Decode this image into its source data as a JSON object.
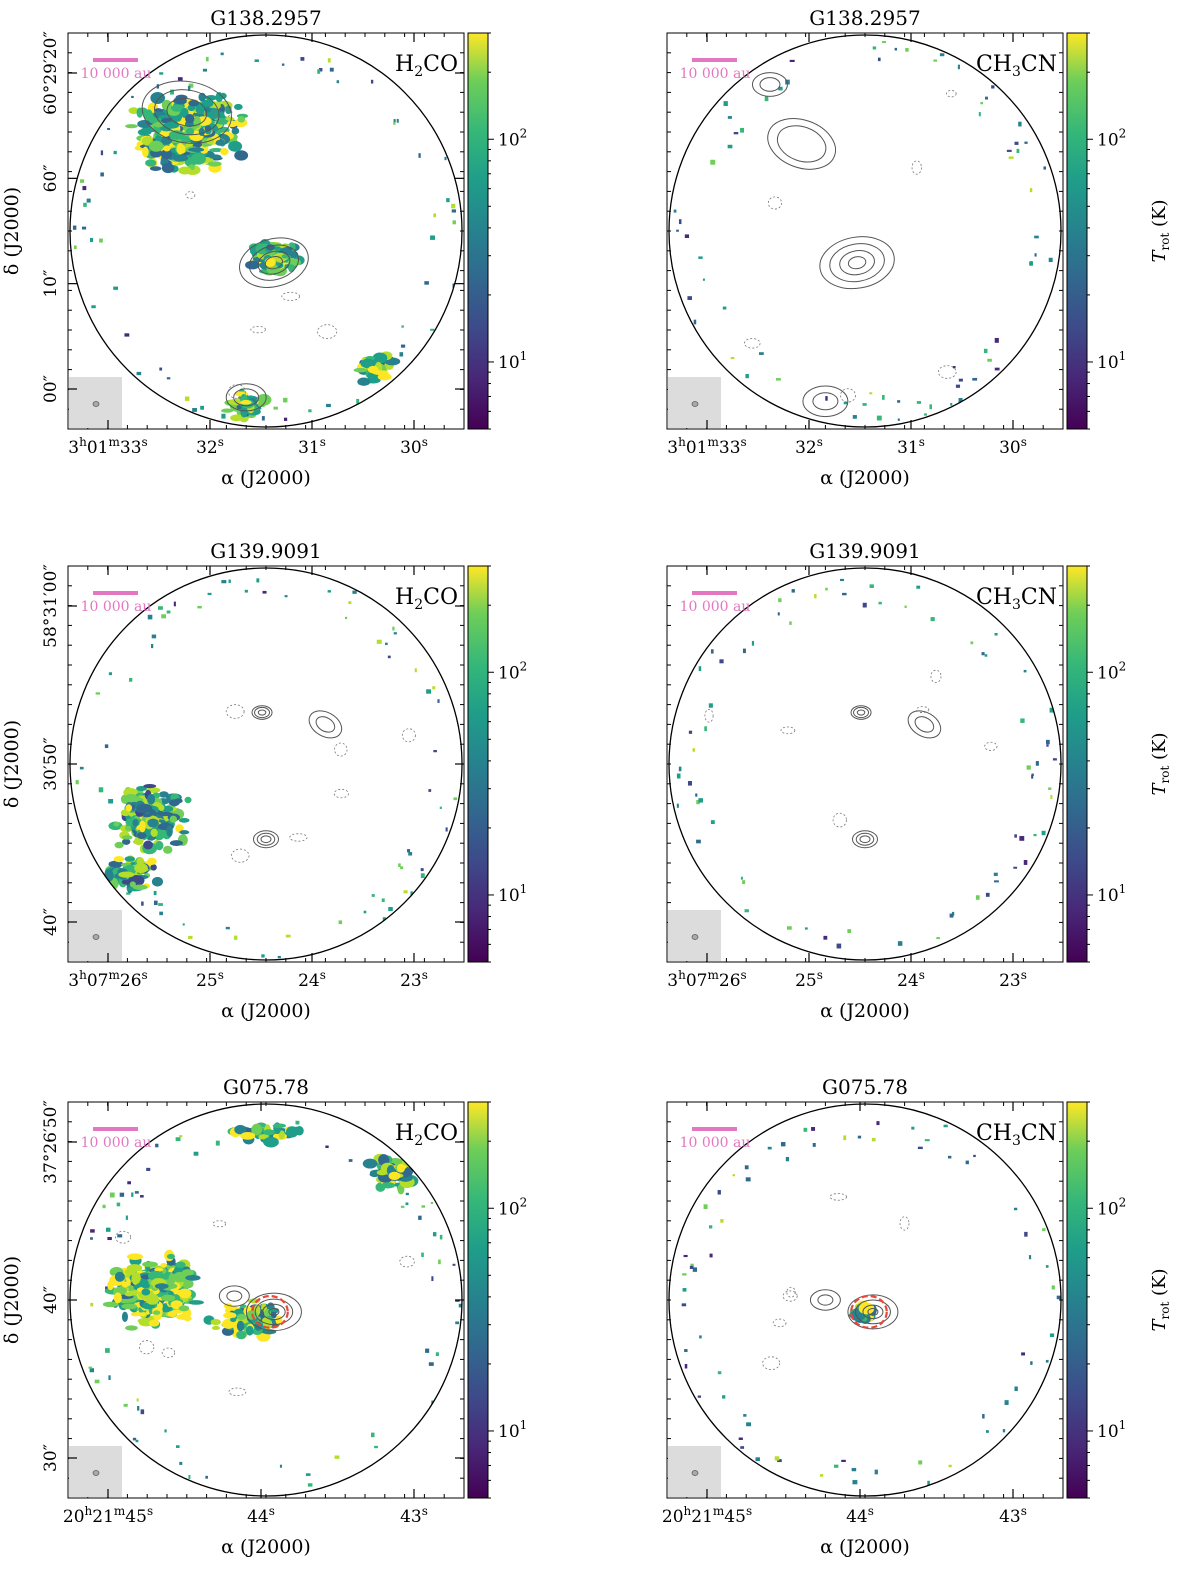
{
  "figure": {
    "x_axis_label": "α (J2000)",
    "y_axis_label": "δ (J2000)",
    "colorbar_label": "T",
    "colorbar_label_sub": "rot",
    "colorbar_label_unit": "(K)",
    "colorbar_ticks": [
      10,
      100
    ],
    "colorbar_range": [
      5,
      300
    ],
    "scalebar_label": "10 000 au",
    "colors": {
      "scalebar": "#e377c2",
      "beam_box": "#dcdcdc",
      "ellipse_outline": "#e8483a"
    }
  },
  "chart_data": [
    {
      "type": "heatmap",
      "panel": "top-left",
      "title": "G138.2957",
      "tracer": "H2CO",
      "tracer_main": "H",
      "tracer_sub": "2",
      "tracer_rest": "CO",
      "x_ticks": [
        {
          "h": "3",
          "m": "01",
          "s": "33"
        },
        {
          "s": "32"
        },
        {
          "s": "31"
        },
        {
          "s": "30"
        }
      ],
      "y_ticks": [
        {
          "label": "60°29′20″"
        },
        {
          "label": "60″"
        },
        {
          "label": "10″"
        },
        {
          "label": "00″"
        }
      ]
    },
    {
      "type": "heatmap",
      "panel": "top-right",
      "title": "G138.2957",
      "tracer": "CH3CN",
      "tracer_main": "CH",
      "tracer_sub": "3",
      "tracer_rest": "CN",
      "x_ticks": [
        {
          "h": "3",
          "m": "01",
          "s": "33"
        },
        {
          "s": "32"
        },
        {
          "s": "31"
        },
        {
          "s": "30"
        }
      ]
    },
    {
      "type": "heatmap",
      "panel": "middle-left",
      "title": "G139.9091",
      "tracer": "H2CO",
      "tracer_main": "H",
      "tracer_sub": "2",
      "tracer_rest": "CO",
      "x_ticks": [
        {
          "h": "3",
          "m": "07",
          "s": "26"
        },
        {
          "s": "25"
        },
        {
          "s": "24"
        },
        {
          "s": "23"
        }
      ],
      "y_ticks": [
        {
          "label": "58°31′00″"
        },
        {
          "label": "30′50″"
        },
        {
          "label": "40″"
        }
      ]
    },
    {
      "type": "heatmap",
      "panel": "middle-right",
      "title": "G139.9091",
      "tracer": "CH3CN",
      "tracer_main": "CH",
      "tracer_sub": "3",
      "tracer_rest": "CN",
      "x_ticks": [
        {
          "h": "3",
          "m": "07",
          "s": "26"
        },
        {
          "s": "25"
        },
        {
          "s": "24"
        },
        {
          "s": "23"
        }
      ]
    },
    {
      "type": "heatmap",
      "panel": "bottom-left",
      "title": "G075.78",
      "tracer": "H2CO",
      "tracer_main": "H",
      "tracer_sub": "2",
      "tracer_rest": "CO",
      "x_ticks": [
        {
          "h": "20",
          "m": "21",
          "s": "45"
        },
        {
          "s": "44"
        },
        {
          "s": "43"
        }
      ],
      "y_ticks": [
        {
          "label": "37°26′50″"
        },
        {
          "label": "40″"
        },
        {
          "label": "30″"
        }
      ]
    },
    {
      "type": "heatmap",
      "panel": "bottom-right",
      "title": "G075.78",
      "tracer": "CH3CN",
      "tracer_main": "CH",
      "tracer_sub": "3",
      "tracer_rest": "CN",
      "x_ticks": [
        {
          "h": "20",
          "m": "21",
          "s": "45"
        },
        {
          "s": "44"
        },
        {
          "s": "43"
        }
      ]
    }
  ]
}
